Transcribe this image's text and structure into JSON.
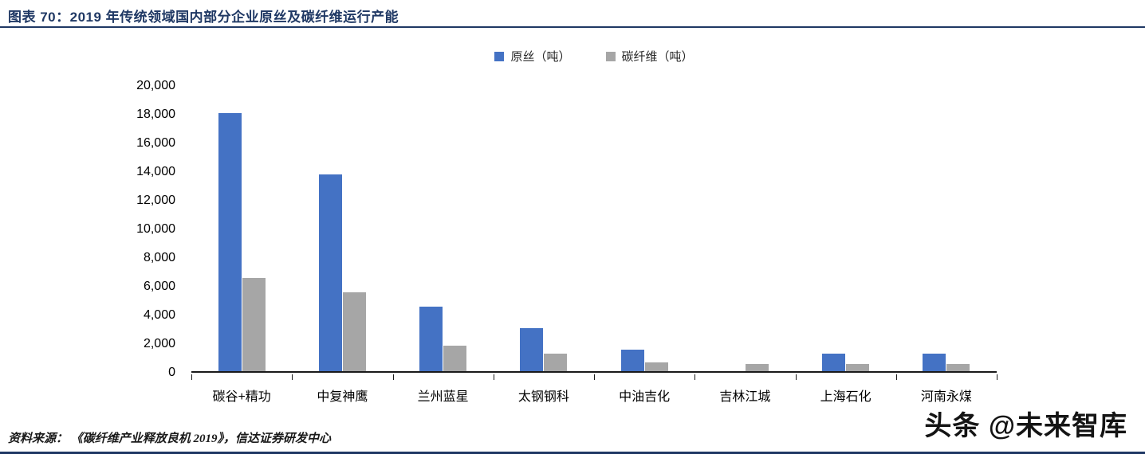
{
  "header": {
    "title": "图表 70：2019 年传统领域国内部分企业原丝及碳纤维运行产能"
  },
  "chart_data": {
    "type": "bar",
    "title": "2019 年传统领域国内部分企业原丝及碳纤维运行产能",
    "categories": [
      "碳谷+精功",
      "中复神鹰",
      "兰州蓝星",
      "太钢钢科",
      "中油吉化",
      "吉林江城",
      "上海石化",
      "河南永煤"
    ],
    "series": [
      {
        "name": "原丝（吨）",
        "color": "#4472C4",
        "values": [
          18000,
          13700,
          4500,
          3000,
          1500,
          0,
          1200,
          1200
        ]
      },
      {
        "name": "碳纤维（吨）",
        "color": "#A6A6A6",
        "values": [
          6500,
          5500,
          1800,
          1200,
          600,
          500,
          500,
          500
        ]
      }
    ],
    "xlabel": "",
    "ylabel": "",
    "ylim": [
      0,
      20000
    ],
    "ytick_step": 2000,
    "grid": false,
    "legend_position": "top"
  },
  "footer": {
    "source": "资料来源： 《碳纤维产业释放良机 2019》，信达证券研发中心",
    "watermark": "头条 @未来智库"
  },
  "colors": {
    "accent": "#1F3864",
    "bar_blue": "#4472C4",
    "bar_gray": "#A6A6A6"
  }
}
